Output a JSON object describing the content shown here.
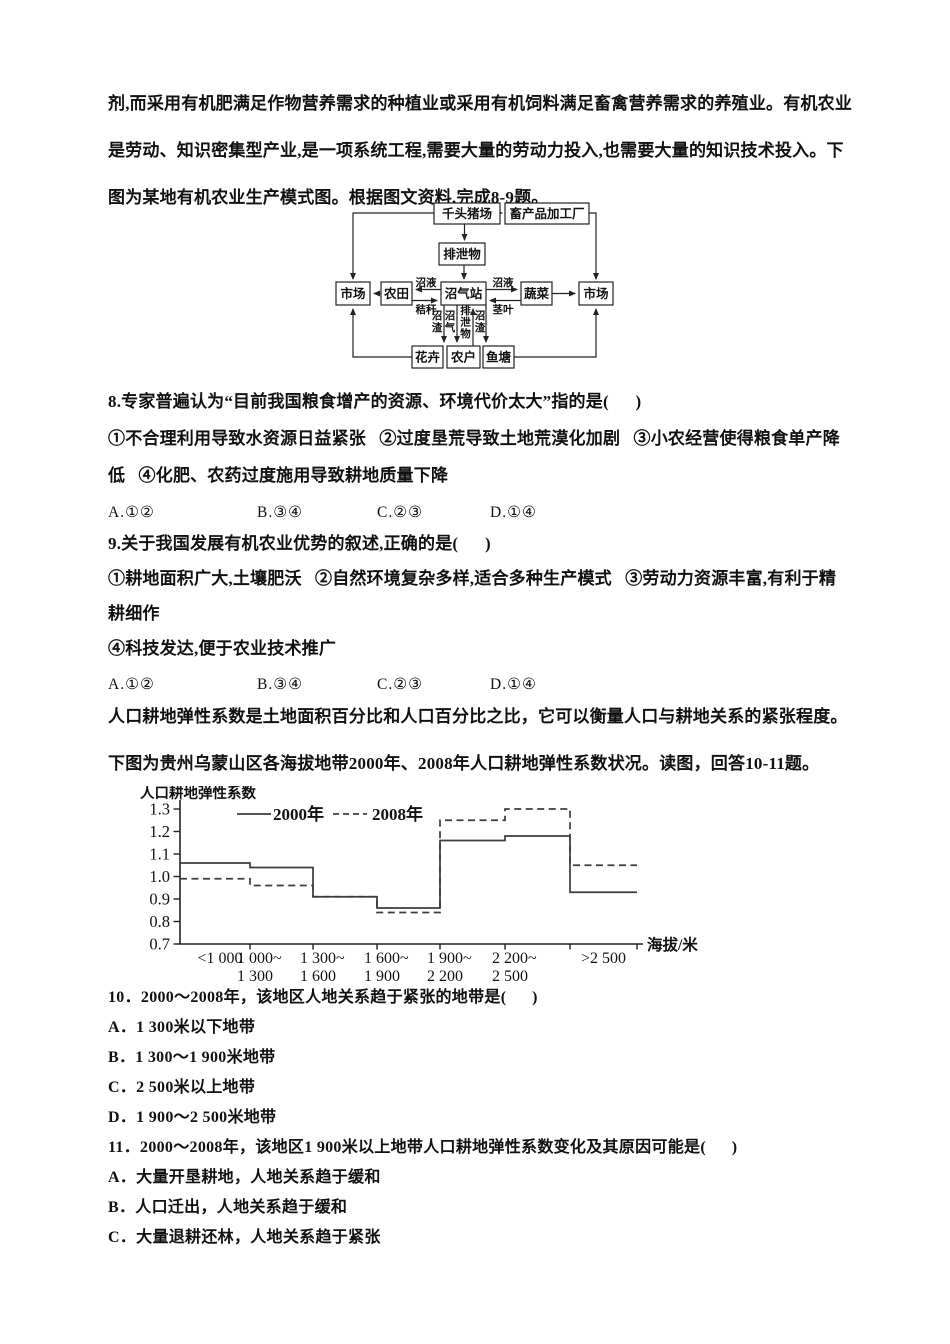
{
  "intro": {
    "lines": [
      "剂,而采用有机肥满足作物营养需求的种植业或采用有机饲料满足畜禽营养需求的养殖业。有机农业",
      "是劳动、知识密集型产业,是一项系统工程,需要大量的劳动力投入,也需要大量的知识技术投入。下",
      "图为某地有机农业生产模式图。根据图文资料,完成8-9题。"
    ]
  },
  "diagram": {
    "title": "有机农业生产模式图",
    "nodes": {
      "pig_farm": "千头猪场",
      "processing_plant": "畜产品加工厂",
      "excrement": "排泄物",
      "biogas_station": "沼气站",
      "farmland": "农田",
      "market_left": "市场",
      "vegetables": "蔬菜",
      "market_right": "市场",
      "flowers": "花卉",
      "farm_household": "农户",
      "fish_pond": "鱼塘"
    },
    "flow_labels": {
      "slurry_left": "沼液",
      "straw": "秸秆",
      "slurry_right": "沼液",
      "stem_leaf": "茎叶",
      "residue_left": "沼渣",
      "biogas": "沼气",
      "excrement_up": "排泄物",
      "residue_right": "沼渣"
    }
  },
  "q8": {
    "stem": "8.专家普遍认为“目前我国粮食增产的资源、环境代价太大”指的是(      )",
    "body_lines": [
      "①不合理利用导致水资源日益紧张   ②过度垦荒导致土地荒漠化加剧   ③小农经营使得粮食单产降",
      "低   ④化肥、农药过度施用导致耕地质量下降"
    ],
    "options": [
      "A.①②",
      "B.③④",
      "C.②③",
      "D.①④"
    ]
  },
  "q9": {
    "stem": "9.关于我国发展有机农业优势的叙述,正确的是(      )",
    "body_lines": [
      "①耕地面积广大,土壤肥沃   ②自然环境复杂多样,适合多种生产模式   ③劳动力资源丰富,有利于精",
      "耕细作",
      "④科技发达,便于农业技术推广"
    ],
    "options": [
      "A.①②",
      "B.③④",
      "C.②③",
      "D.①④"
    ]
  },
  "intro2": {
    "lines": [
      "人口耕地弹性系数是土地面积百分比和人口百分比之比，它可以衡量人口与耕地关系的紧张程度。",
      "下图为贵州乌蒙山区各海拔地带2000年、2008年人口耕地弹性系数状况。读图，回答10-11题。"
    ]
  },
  "chart_data": {
    "type": "line",
    "step": true,
    "title": "",
    "ylabel": "人口耕地弹性系数",
    "xlabel": "海拔/米",
    "categories": [
      "<1 000",
      "1 000~1 300",
      "1 300~1 600",
      "1 600~1 900",
      "1 900~2 200",
      "2 200~2 500",
      ">2 500"
    ],
    "ylim": [
      0.7,
      1.3
    ],
    "yticks": [
      0.7,
      0.8,
      0.9,
      1.0,
      1.1,
      1.2,
      1.3
    ],
    "grid": false,
    "legend_position": "top",
    "series": [
      {
        "name": "2000年",
        "line_style": "solid",
        "values": [
          1.06,
          1.04,
          0.91,
          0.86,
          1.16,
          1.18,
          0.93
        ]
      },
      {
        "name": "2008年",
        "line_style": "dashed",
        "values": [
          0.99,
          0.96,
          0.91,
          0.84,
          1.25,
          1.3,
          1.05
        ]
      }
    ]
  },
  "q10": {
    "stem": "10．2000～2008年，该地区人地关系趋于紧张的地带是(      )",
    "options": [
      "A．1 300米以下地带",
      "B．1 300～1 900米地带",
      "C．2 500米以上地带",
      "D．1 900～2 500米地带"
    ]
  },
  "q11": {
    "stem": "11．2000～2008年，该地区1 900米以上地带人口耕地弹性系数变化及其原因可能是(      )",
    "options": [
      "A．大量开垦耕地，人地关系趋于缓和",
      "B．人口迁出，人地关系趋于缓和",
      "C．大量退耕还林，人地关系趋于紧张"
    ]
  }
}
